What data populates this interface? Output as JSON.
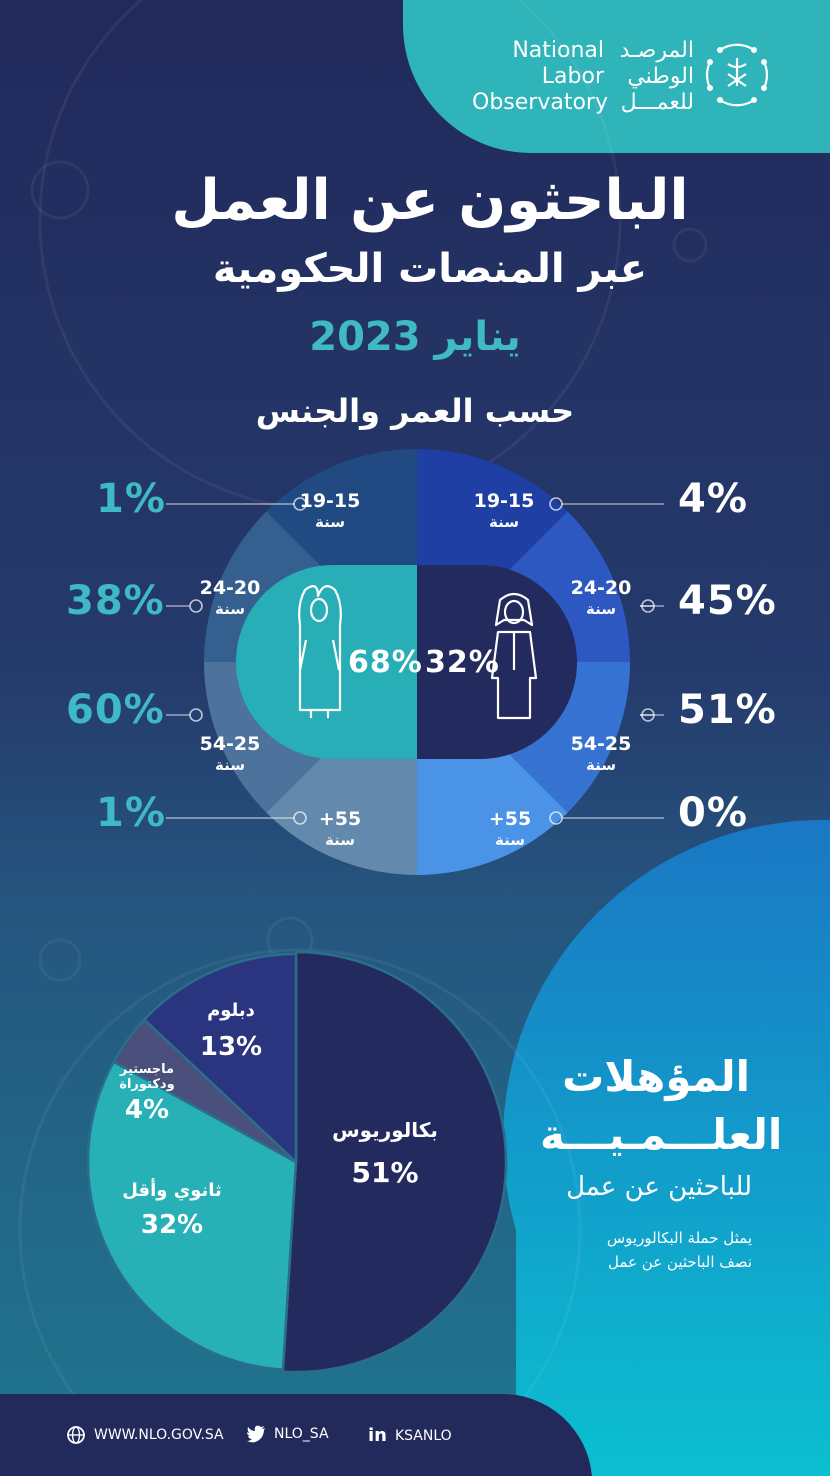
{
  "logo": {
    "en_line1": "National",
    "en_line2": "Labor",
    "en_line3": "Observatory",
    "ar_line1": "المرصـد",
    "ar_line2": "الوطني",
    "ar_line3": "للعمـــل"
  },
  "title": {
    "line1": "الباحثون عن العمل",
    "line2": "عبر المنصات الحكومية",
    "date": "يناير 2023"
  },
  "section1_title": "حسب العمر والجنس",
  "colors": {
    "female": "#27aeb6",
    "male": "#232a5d",
    "accent_teal": "#3fb9c3",
    "male_bands": [
      "#1f3fa4",
      "#2d58c2",
      "#3672d1",
      "#4a93e6"
    ],
    "female_bands": [
      "#214a82",
      "#355f8f",
      "#4d739c",
      "#6389ad"
    ]
  },
  "chart_data": [
    {
      "type": "pie",
      "title": "حسب العمر والجنس",
      "gender": [
        {
          "name": "إناث",
          "value": 68,
          "label": "68%"
        },
        {
          "name": "ذكور",
          "value": 32,
          "label": "32%"
        }
      ],
      "age_groups": [
        {
          "range": "19-15",
          "unit": "سنة"
        },
        {
          "range": "24-20",
          "unit": "سنة"
        },
        {
          "range": "54-25",
          "unit": "سنة"
        },
        {
          "range": "+55",
          "unit": "سنة"
        }
      ],
      "series": [
        {
          "values": [
            1,
            38,
            60,
            1
          ],
          "labels": [
            "1%",
            "38%",
            "60%",
            "1%"
          ]
        },
        {
          "values": [
            4,
            45,
            51,
            0
          ],
          "labels": [
            "4%",
            "45%",
            "51%",
            "0%"
          ]
        }
      ]
    },
    {
      "type": "pie",
      "title": "المؤهلات العلمية",
      "categories": [
        "بكالوريوس",
        "ثانوي وأقل",
        "ماجستير ودكتوراة",
        "دبلوم"
      ],
      "values": [
        51,
        32,
        4,
        13
      ],
      "labels": [
        "51%",
        "32%",
        "4%",
        "13%"
      ],
      "colors": [
        "#232a5d",
        "#28b0b7",
        "#4a4f7c",
        "#2b357f"
      ]
    }
  ],
  "qualifications": {
    "title_line1": "المؤهلات",
    "title_line2": "العلـــمـيـــة",
    "subtitle": "للباحثين عن عمل",
    "note_line1": "يمثل حملة البكالوريوس",
    "note_line2": "نصف الباحثين عن عمل",
    "slices": [
      {
        "name_lines": [
          "بكالوريوس"
        ],
        "value": "51%"
      },
      {
        "name_lines": [
          "ثانوي وأقل"
        ],
        "value": "32%"
      },
      {
        "name_lines": [
          "ماجستير",
          "ودكتوراة"
        ],
        "value": "4%"
      },
      {
        "name_lines": [
          "دبلوم"
        ],
        "value": "13%"
      }
    ]
  },
  "footer": {
    "website": "WWW.NLO.GOV.SA",
    "twitter": "NLO_SA",
    "linkedin": "KSANLO",
    "linkedin_glyph": "in"
  }
}
